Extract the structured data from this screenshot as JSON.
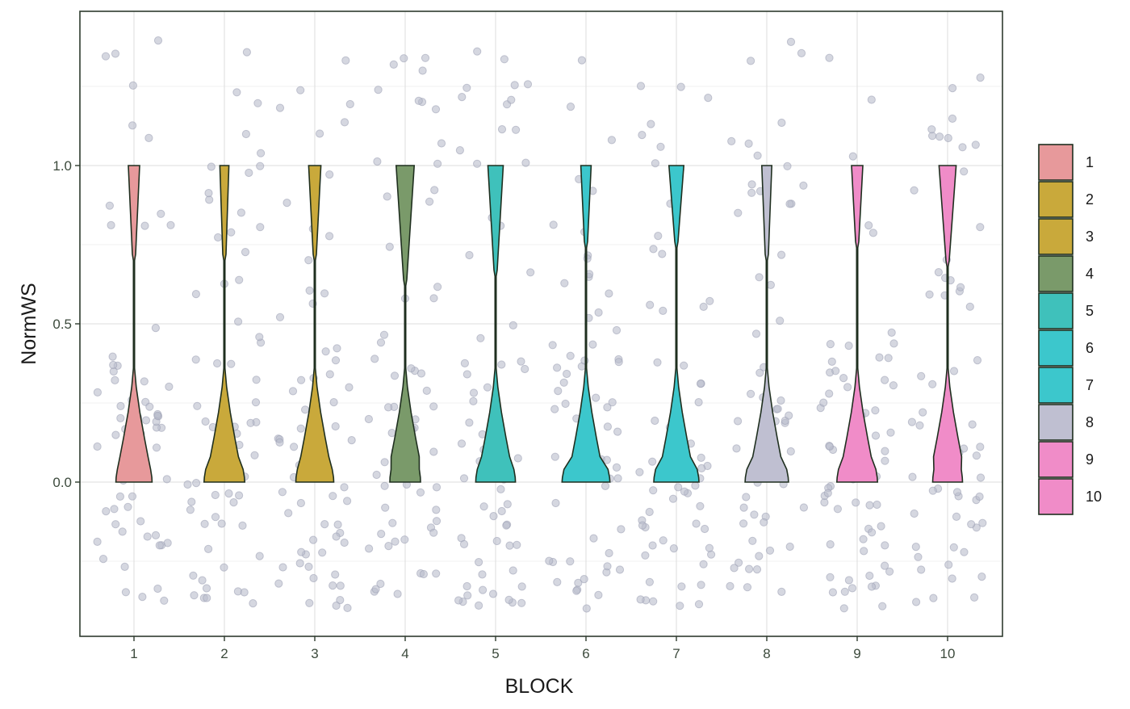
{
  "chart_data": {
    "type": "violin",
    "xlabel": "BLOCK",
    "ylabel": "NormWS",
    "categories": [
      "1",
      "2",
      "3",
      "4",
      "5",
      "6",
      "7",
      "8",
      "9",
      "10"
    ],
    "y_ticks": [
      "0.0",
      "0.5",
      "1.0"
    ],
    "y_tick_values": [
      0.0,
      0.5,
      1.0
    ],
    "ylim": [
      -0.48,
      1.5
    ],
    "grid": true,
    "legend_position": "right",
    "legend": [
      "1",
      "2",
      "3",
      "4",
      "5",
      "6",
      "7",
      "8",
      "9",
      "10"
    ],
    "fill_colors": [
      "#e7999b",
      "#c9a93b",
      "#c9a93b",
      "#7a9a6a",
      "#3fc1bb",
      "#3cc7cc",
      "#3cc7cc",
      "#bfbfd1",
      "#f08cc8",
      "#f08cc8"
    ],
    "jitter_range": [
      -0.4,
      1.4
    ],
    "violins": [
      {
        "block": "1",
        "upper_half_width": 0.125,
        "neck_low": 0.7,
        "neck_high": 0.7,
        "bulge_half_width": 0.4
      },
      {
        "block": "2",
        "upper_half_width": 0.1,
        "neck_low": 0.7,
        "neck_high": 0.7,
        "bulge_half_width": 0.45
      },
      {
        "block": "3",
        "upper_half_width": 0.135,
        "neck_low": 0.7,
        "neck_high": 0.7,
        "bulge_half_width": 0.42
      },
      {
        "block": "4",
        "upper_half_width": 0.2,
        "neck_low": 0.62,
        "neck_high": 0.62,
        "bulge_half_width": 0.34
      },
      {
        "block": "5",
        "upper_half_width": 0.17,
        "neck_low": 0.65,
        "neck_high": 0.65,
        "bulge_half_width": 0.44
      },
      {
        "block": "6",
        "upper_half_width": 0.115,
        "neck_low": 0.74,
        "neck_high": 0.74,
        "bulge_half_width": 0.53
      },
      {
        "block": "7",
        "upper_half_width": 0.165,
        "neck_low": 0.74,
        "neck_high": 0.74,
        "bulge_half_width": 0.5
      },
      {
        "block": "8",
        "upper_half_width": 0.11,
        "neck_low": 0.7,
        "neck_high": 0.7,
        "bulge_half_width": 0.48
      },
      {
        "block": "9",
        "upper_half_width": 0.125,
        "neck_low": 0.74,
        "neck_high": 0.74,
        "bulge_half_width": 0.45
      },
      {
        "block": "10",
        "upper_half_width": 0.19,
        "neck_low": 0.68,
        "neck_high": 0.68,
        "bulge_half_width": 0.33
      }
    ]
  }
}
